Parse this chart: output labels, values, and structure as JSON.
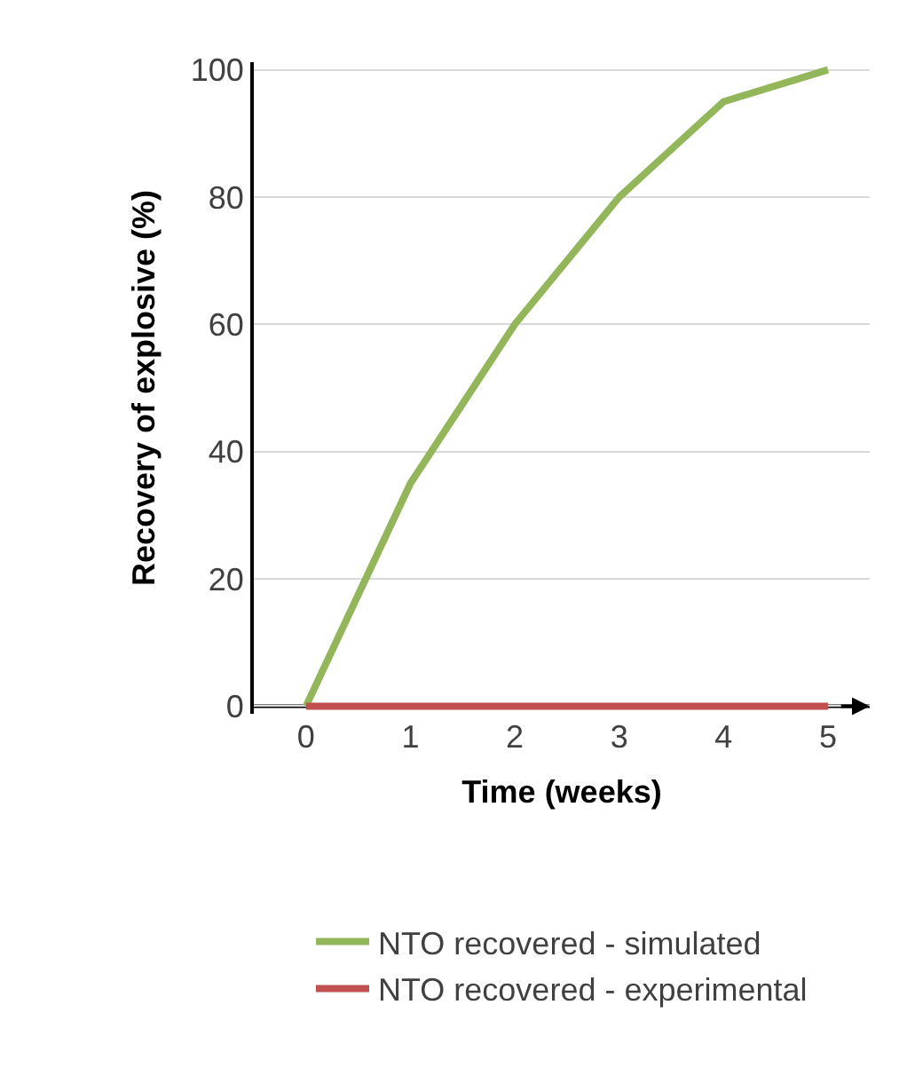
{
  "chart_data": {
    "type": "line",
    "xlabel": "Time (weeks)",
    "ylabel": "Recovery of explosive (%)",
    "x": [
      0,
      1,
      2,
      3,
      4,
      5
    ],
    "series": [
      {
        "name": "NTO recovered - simulated",
        "color": "#92b659",
        "values": [
          0,
          35,
          60,
          80,
          95,
          100
        ]
      },
      {
        "name": "NTO recovered - experimental",
        "color": "#c0504d",
        "values": [
          0,
          0,
          0,
          0,
          0,
          0
        ]
      }
    ],
    "xlim": [
      -0.5,
      5.4
    ],
    "xticks": [
      0,
      1,
      2,
      3,
      4,
      5
    ],
    "ylim": [
      0,
      100
    ],
    "yticks": [
      0,
      20,
      40,
      60,
      80,
      100
    ],
    "grid": "y",
    "legend": "bottom",
    "marker": "none",
    "line_style": "solid"
  }
}
